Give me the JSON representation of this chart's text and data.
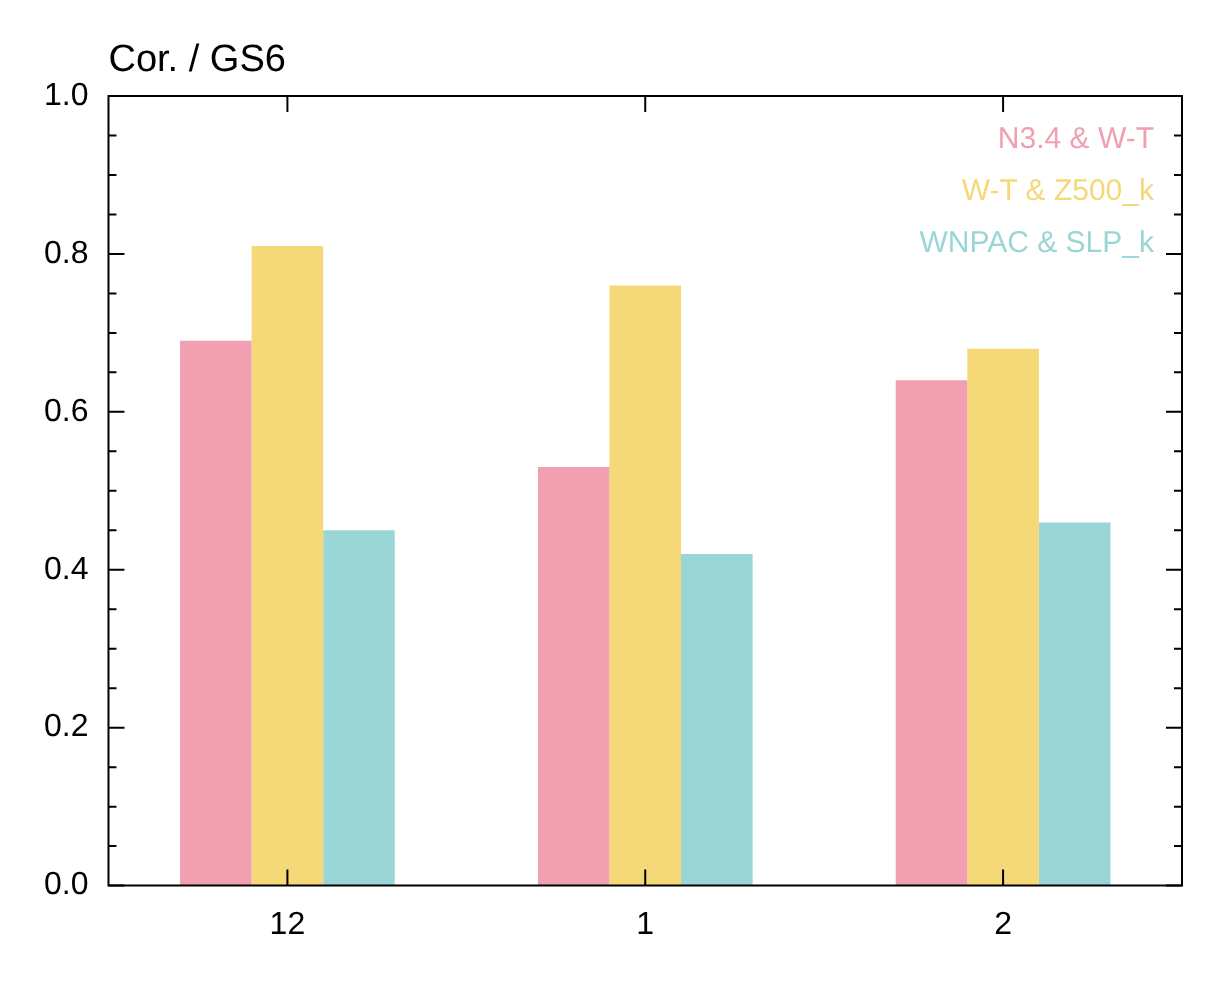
{
  "chart_data": {
    "type": "bar",
    "title": "Cor. / GS6",
    "categories": [
      "12",
      "1",
      "2"
    ],
    "series": [
      {
        "name": "N3.4 & W-T",
        "color": "#f0a0b0",
        "values": [
          0.69,
          0.53,
          0.64
        ]
      },
      {
        "name": "W-T & Z500_k",
        "color": "#f5d878",
        "values": [
          0.81,
          0.76,
          0.68
        ]
      },
      {
        "name": "WNPAC & SLP_k",
        "color": "#9ad6d6",
        "values": [
          0.45,
          0.42,
          0.46
        ]
      }
    ],
    "ylim": [
      0,
      1
    ],
    "yticks": [
      {
        "value": 0,
        "label": "0.0"
      },
      {
        "value": 0.2,
        "label": "0.2"
      },
      {
        "value": 0.4,
        "label": "0.4"
      },
      {
        "value": 0.6,
        "label": "0.6"
      },
      {
        "value": 0.8,
        "label": "0.8"
      },
      {
        "value": 1,
        "label": "1.0"
      }
    ],
    "grid": false,
    "legend": "top right"
  }
}
